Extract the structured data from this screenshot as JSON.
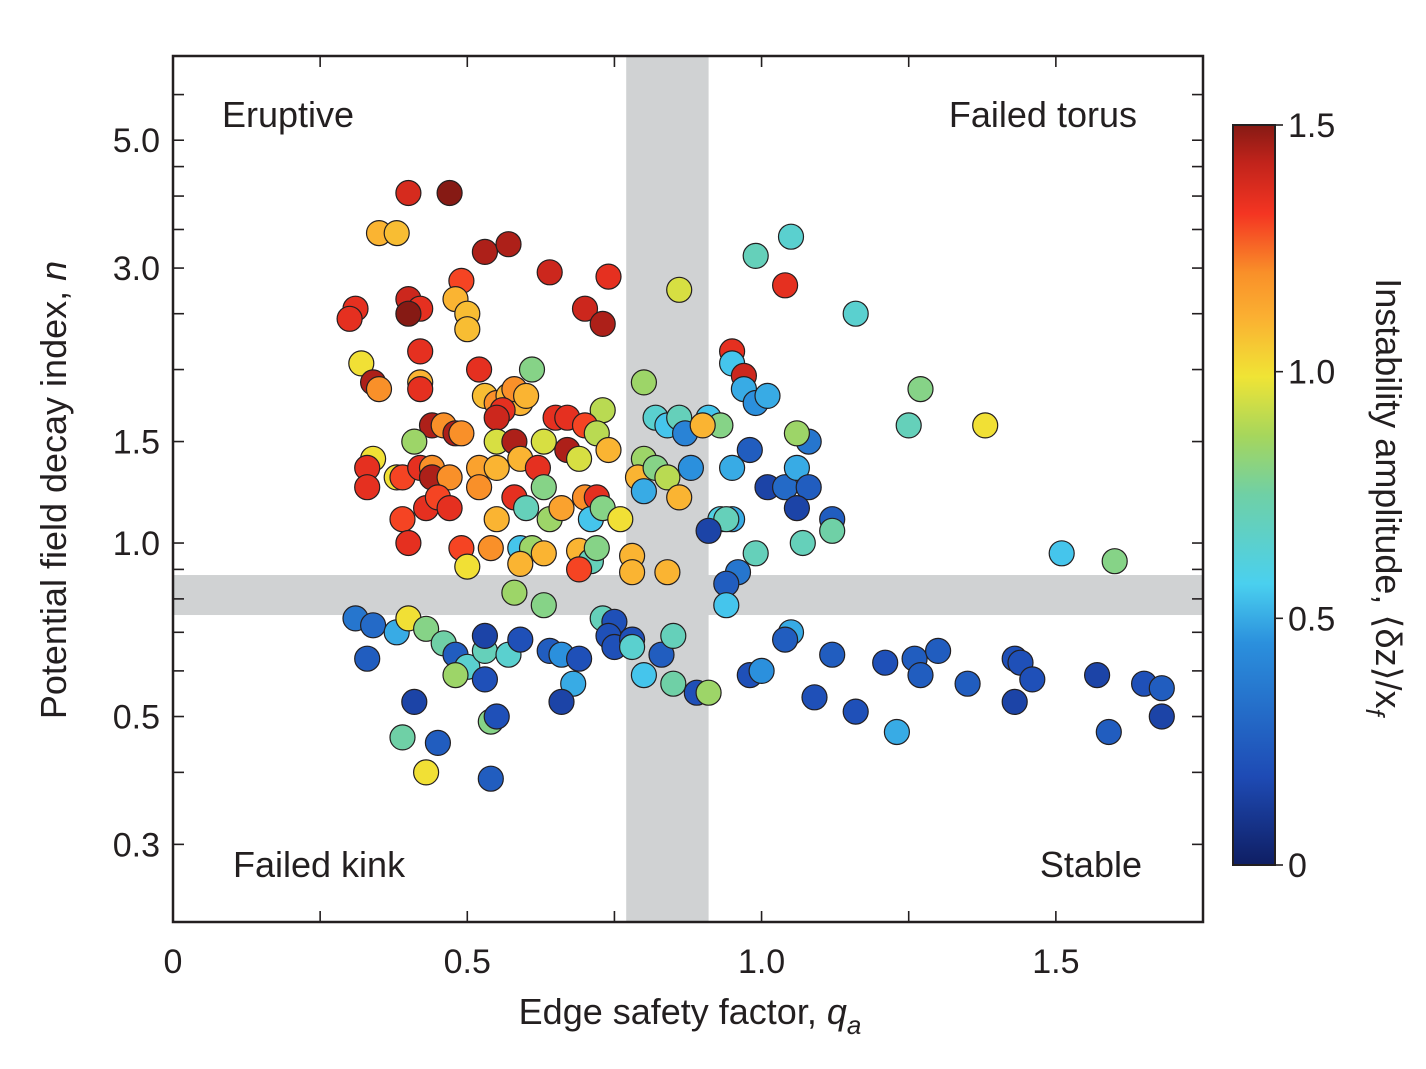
{
  "chart_data": {
    "type": "scatter",
    "xlabel": {
      "text": "Edge safety factor, ",
      "var": "q",
      "sub": "a"
    },
    "ylabel": {
      "text": "Potential field decay index, ",
      "var": "n"
    },
    "xlim": [
      0,
      1.75
    ],
    "ylim": [
      0.22,
      7.0
    ],
    "yscale": "log",
    "x_ticks": [
      0,
      0.5,
      1.0,
      1.5
    ],
    "x_tick_labels": [
      "0",
      "0.5",
      "1.0",
      "1.5"
    ],
    "y_ticks": [
      0.3,
      0.5,
      1.0,
      1.5,
      3.0,
      5.0
    ],
    "y_tick_labels": [
      "0.3",
      "0.5",
      "1.0",
      "1.5",
      "3.0",
      "5.0"
    ],
    "grid": false,
    "threshold_bands": {
      "q_a": [
        0.77,
        0.91
      ],
      "n": [
        0.75,
        0.88
      ],
      "color": "#d0d2d3"
    },
    "region_labels": {
      "top_left": "Eruptive",
      "top_right": "Failed torus",
      "bottom_left": "Failed kink",
      "bottom_right": "Stable"
    },
    "colorbar": {
      "label": "Instability amplitude, ⟨δz⟩/x",
      "label_sub": "f",
      "min": 0,
      "max": 1.5,
      "ticks": [
        0,
        0.5,
        1.0,
        1.5
      ],
      "tick_labels": [
        "0",
        "0.5",
        "1.0",
        "1.5"
      ],
      "colormap": "jet"
    },
    "points": [
      [
        0.4,
        4.05,
        1.38
      ],
      [
        0.47,
        4.05,
        1.5
      ],
      [
        0.35,
        3.45,
        1.1
      ],
      [
        0.38,
        3.45,
        1.08
      ],
      [
        0.53,
        3.2,
        1.45
      ],
      [
        0.57,
        3.3,
        1.45
      ],
      [
        0.64,
        2.95,
        1.4
      ],
      [
        0.74,
        2.9,
        1.35
      ],
      [
        0.49,
        2.85,
        1.3
      ],
      [
        0.4,
        2.65,
        1.4
      ],
      [
        0.42,
        2.55,
        1.35
      ],
      [
        0.48,
        2.65,
        1.1
      ],
      [
        0.31,
        2.55,
        1.35
      ],
      [
        0.3,
        2.45,
        1.35
      ],
      [
        0.4,
        2.5,
        1.5
      ],
      [
        0.5,
        2.5,
        1.08
      ],
      [
        0.5,
        2.35,
        1.08
      ],
      [
        0.7,
        2.55,
        1.4
      ],
      [
        0.73,
        2.4,
        1.45
      ],
      [
        0.32,
        2.05,
        1.0
      ],
      [
        0.42,
        2.15,
        1.35
      ],
      [
        0.34,
        1.9,
        1.45
      ],
      [
        0.35,
        1.85,
        1.2
      ],
      [
        0.42,
        1.9,
        1.1
      ],
      [
        0.42,
        1.85,
        1.35
      ],
      [
        0.52,
        2.0,
        1.35
      ],
      [
        0.61,
        2.0,
        0.8
      ],
      [
        0.53,
        1.8,
        1.08
      ],
      [
        0.55,
        1.75,
        1.2
      ],
      [
        0.57,
        1.8,
        1.1
      ],
      [
        0.59,
        1.75,
        1.1
      ],
      [
        0.58,
        1.85,
        1.2
      ],
      [
        0.6,
        1.8,
        1.1
      ],
      [
        0.56,
        1.7,
        1.35
      ],
      [
        0.55,
        1.65,
        1.4
      ],
      [
        0.73,
        1.7,
        0.9
      ],
      [
        0.44,
        1.6,
        1.45
      ],
      [
        0.46,
        1.6,
        1.2
      ],
      [
        0.48,
        1.55,
        1.45
      ],
      [
        0.49,
        1.55,
        1.2
      ],
      [
        0.55,
        1.5,
        0.95
      ],
      [
        0.58,
        1.5,
        1.45
      ],
      [
        0.63,
        1.5,
        0.95
      ],
      [
        0.65,
        1.65,
        1.35
      ],
      [
        0.67,
        1.65,
        1.35
      ],
      [
        0.7,
        1.6,
        1.3
      ],
      [
        0.72,
        1.55,
        0.9
      ],
      [
        0.41,
        1.5,
        0.85
      ],
      [
        0.34,
        1.4,
        1.0
      ],
      [
        0.33,
        1.35,
        1.35
      ],
      [
        0.38,
        1.3,
        1.0
      ],
      [
        0.39,
        1.3,
        1.3
      ],
      [
        0.42,
        1.35,
        1.35
      ],
      [
        0.44,
        1.35,
        1.2
      ],
      [
        0.44,
        1.3,
        1.45
      ],
      [
        0.47,
        1.3,
        1.2
      ],
      [
        0.52,
        1.35,
        1.15
      ],
      [
        0.55,
        1.35,
        1.1
      ],
      [
        0.59,
        1.4,
        1.1
      ],
      [
        0.62,
        1.35,
        1.35
      ],
      [
        0.67,
        1.45,
        1.45
      ],
      [
        0.69,
        1.4,
        0.95
      ],
      [
        0.74,
        1.45,
        1.1
      ],
      [
        0.33,
        1.25,
        1.35
      ],
      [
        0.39,
        1.1,
        1.3
      ],
      [
        0.4,
        1.0,
        1.35
      ],
      [
        0.43,
        1.15,
        1.35
      ],
      [
        0.45,
        1.2,
        1.3
      ],
      [
        0.47,
        1.15,
        1.35
      ],
      [
        0.52,
        1.25,
        1.2
      ],
      [
        0.55,
        1.1,
        1.1
      ],
      [
        0.58,
        1.2,
        1.35
      ],
      [
        0.6,
        1.15,
        0.7
      ],
      [
        0.63,
        1.25,
        0.8
      ],
      [
        0.64,
        1.1,
        0.85
      ],
      [
        0.66,
        1.15,
        1.15
      ],
      [
        0.7,
        1.2,
        1.2
      ],
      [
        0.72,
        1.2,
        1.35
      ],
      [
        0.71,
        1.1,
        0.55
      ],
      [
        0.73,
        1.15,
        0.8
      ],
      [
        0.76,
        1.1,
        1.0
      ],
      [
        0.49,
        0.98,
        1.3
      ],
      [
        0.5,
        0.91,
        1.0
      ],
      [
        0.54,
        0.98,
        1.2
      ],
      [
        0.59,
        0.98,
        0.55
      ],
      [
        0.61,
        0.98,
        0.85
      ],
      [
        0.59,
        0.92,
        1.1
      ],
      [
        0.63,
        0.96,
        1.1
      ],
      [
        0.69,
        0.97,
        1.1
      ],
      [
        0.71,
        0.93,
        0.7
      ],
      [
        0.72,
        0.98,
        0.8
      ],
      [
        0.69,
        0.9,
        1.3
      ],
      [
        0.78,
        0.95,
        1.1
      ],
      [
        0.78,
        0.89,
        1.1
      ],
      [
        0.84,
        0.89,
        1.1
      ],
      [
        0.58,
        0.82,
        0.85
      ],
      [
        0.63,
        0.78,
        0.8
      ],
      [
        0.8,
        1.4,
        0.85
      ],
      [
        0.79,
        1.3,
        1.1
      ],
      [
        0.82,
        1.65,
        0.65
      ],
      [
        0.82,
        1.35,
        0.8
      ],
      [
        0.84,
        1.6,
        0.55
      ],
      [
        0.86,
        1.65,
        0.7
      ],
      [
        0.87,
        1.55,
        0.4
      ],
      [
        0.88,
        1.35,
        0.45
      ],
      [
        0.84,
        1.3,
        0.9
      ],
      [
        0.86,
        1.2,
        1.1
      ],
      [
        0.8,
        1.23,
        0.5
      ],
      [
        0.8,
        1.9,
        0.85
      ],
      [
        0.86,
        2.75,
        0.95
      ],
      [
        0.91,
        1.65,
        0.55
      ],
      [
        0.93,
        1.6,
        0.8
      ],
      [
        0.9,
        1.6,
        1.1
      ],
      [
        0.93,
        1.1,
        0.6
      ],
      [
        0.95,
        1.1,
        0.5
      ],
      [
        0.94,
        1.1,
        0.7
      ],
      [
        0.91,
        1.05,
        0.15
      ],
      [
        0.95,
        2.15,
        1.35
      ],
      [
        0.95,
        2.05,
        0.55
      ],
      [
        0.97,
        1.95,
        1.4
      ],
      [
        0.97,
        1.85,
        0.5
      ],
      [
        0.99,
        1.75,
        0.45
      ],
      [
        1.01,
        1.8,
        0.5
      ],
      [
        0.98,
        1.45,
        0.25
      ],
      [
        0.95,
        1.35,
        0.5
      ],
      [
        1.01,
        1.25,
        0.15
      ],
      [
        1.04,
        1.25,
        0.3
      ],
      [
        1.06,
        1.35,
        0.5
      ],
      [
        1.08,
        1.25,
        0.25
      ],
      [
        1.06,
        1.15,
        0.15
      ],
      [
        1.12,
        1.1,
        0.25
      ],
      [
        1.07,
        1.0,
        0.7
      ],
      [
        1.12,
        1.05,
        0.75
      ],
      [
        1.08,
        1.5,
        0.35
      ],
      [
        1.06,
        1.55,
        0.85
      ],
      [
        0.99,
        0.96,
        0.7
      ],
      [
        0.96,
        0.89,
        0.35
      ],
      [
        0.94,
        0.85,
        0.25
      ],
      [
        0.94,
        0.78,
        0.55
      ],
      [
        0.99,
        3.15,
        0.7
      ],
      [
        1.05,
        3.4,
        0.65
      ],
      [
        1.04,
        2.8,
        1.35
      ],
      [
        1.16,
        2.5,
        0.65
      ],
      [
        1.25,
        1.6,
        0.7
      ],
      [
        1.27,
        1.85,
        0.8
      ],
      [
        1.38,
        1.6,
        1.0
      ],
      [
        1.51,
        0.96,
        0.55
      ],
      [
        1.6,
        0.93,
        0.8
      ],
      [
        0.31,
        0.74,
        0.35
      ],
      [
        0.34,
        0.72,
        0.3
      ],
      [
        0.38,
        0.7,
        0.5
      ],
      [
        0.4,
        0.74,
        1.0
      ],
      [
        0.43,
        0.71,
        0.8
      ],
      [
        0.46,
        0.67,
        0.75
      ],
      [
        0.33,
        0.63,
        0.25
      ],
      [
        0.48,
        0.64,
        0.25
      ],
      [
        0.5,
        0.61,
        0.65
      ],
      [
        0.53,
        0.65,
        0.7
      ],
      [
        0.57,
        0.64,
        0.65
      ],
      [
        0.53,
        0.69,
        0.15
      ],
      [
        0.59,
        0.68,
        0.2
      ],
      [
        0.48,
        0.59,
        0.85
      ],
      [
        0.53,
        0.58,
        0.2
      ],
      [
        0.64,
        0.65,
        0.25
      ],
      [
        0.66,
        0.64,
        0.45
      ],
      [
        0.68,
        0.57,
        0.5
      ],
      [
        0.69,
        0.63,
        0.2
      ],
      [
        0.73,
        0.74,
        0.7
      ],
      [
        0.75,
        0.73,
        0.2
      ],
      [
        0.74,
        0.69,
        0.2
      ],
      [
        0.75,
        0.66,
        0.2
      ],
      [
        0.78,
        0.68,
        0.2
      ],
      [
        0.78,
        0.66,
        0.65
      ],
      [
        0.83,
        0.64,
        0.25
      ],
      [
        0.8,
        0.59,
        0.55
      ],
      [
        0.85,
        0.69,
        0.7
      ],
      [
        0.85,
        0.57,
        0.75
      ],
      [
        0.89,
        0.55,
        0.2
      ],
      [
        0.91,
        0.55,
        0.85
      ],
      [
        1.05,
        0.7,
        0.5
      ],
      [
        1.04,
        0.68,
        0.25
      ],
      [
        0.98,
        0.59,
        0.2
      ],
      [
        1.0,
        0.6,
        0.45
      ],
      [
        1.09,
        0.54,
        0.2
      ],
      [
        1.12,
        0.64,
        0.25
      ],
      [
        1.16,
        0.51,
        0.2
      ],
      [
        1.21,
        0.62,
        0.2
      ],
      [
        1.23,
        0.47,
        0.5
      ],
      [
        1.26,
        0.63,
        0.25
      ],
      [
        1.27,
        0.59,
        0.25
      ],
      [
        1.3,
        0.65,
        0.25
      ],
      [
        1.35,
        0.57,
        0.25
      ],
      [
        1.43,
        0.63,
        0.2
      ],
      [
        1.44,
        0.62,
        0.2
      ],
      [
        1.43,
        0.53,
        0.15
      ],
      [
        1.46,
        0.58,
        0.2
      ],
      [
        1.57,
        0.59,
        0.15
      ],
      [
        1.59,
        0.47,
        0.25
      ],
      [
        1.65,
        0.57,
        0.2
      ],
      [
        1.68,
        0.56,
        0.25
      ],
      [
        1.68,
        0.5,
        0.15
      ],
      [
        0.41,
        0.53,
        0.15
      ],
      [
        0.39,
        0.46,
        0.75
      ],
      [
        0.45,
        0.45,
        0.25
      ],
      [
        0.43,
        0.4,
        1.0
      ],
      [
        0.54,
        0.49,
        0.8
      ],
      [
        0.55,
        0.5,
        0.2
      ],
      [
        0.54,
        0.39,
        0.25
      ],
      [
        0.66,
        0.53,
        0.15
      ]
    ]
  }
}
